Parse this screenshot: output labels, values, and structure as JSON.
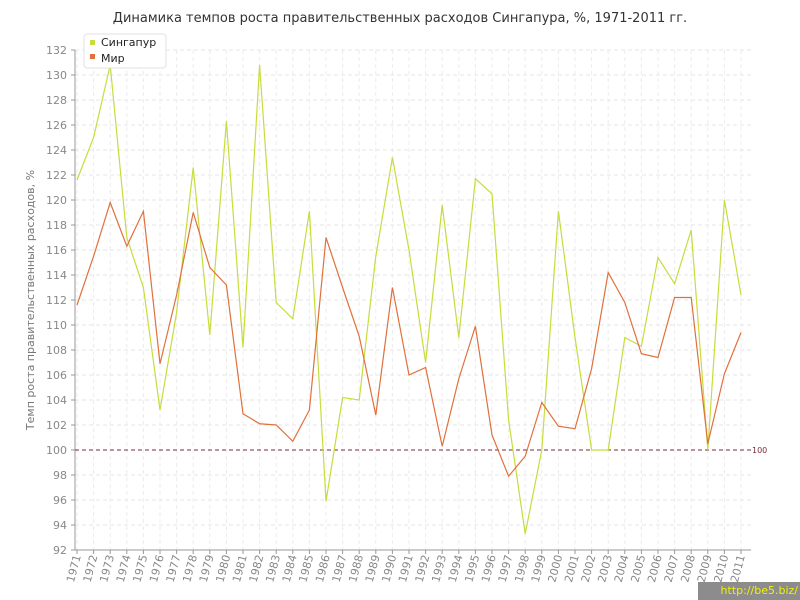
{
  "chart_data": {
    "type": "line",
    "title": "Динамика темпов роста правительственных расходов Сингапура, %, 1971-2011 гг.",
    "xlabel": "",
    "ylabel": "Темп роста правительственных расходов, %",
    "ylim": [
      92,
      132
    ],
    "yticks": [
      92,
      94,
      96,
      98,
      100,
      102,
      104,
      106,
      108,
      110,
      112,
      114,
      116,
      118,
      120,
      122,
      124,
      126,
      128,
      130,
      132
    ],
    "grid": true,
    "legend_position": "top-left",
    "x": [
      "1971",
      "1972",
      "1973",
      "1974",
      "1975",
      "1976",
      "1977",
      "1978",
      "1979",
      "1980",
      "1981",
      "1982",
      "1983",
      "1984",
      "1985",
      "1986",
      "1987",
      "1988",
      "1989",
      "1990",
      "1991",
      "1992",
      "1993",
      "1994",
      "1995",
      "1996",
      "1997",
      "1998",
      "1999",
      "2000",
      "2001",
      "2002",
      "2003",
      "2004",
      "2005",
      "2006",
      "2007",
      "2008",
      "2009",
      "2010",
      "2011"
    ],
    "series": [
      {
        "name": "Сингапур",
        "color": "#c8dc3c",
        "values": [
          121.6,
          125.0,
          130.8,
          117.0,
          113.0,
          103.2,
          111.0,
          122.6,
          109.2,
          126.3,
          108.2,
          130.8,
          111.8,
          110.5,
          119.1,
          95.9,
          104.2,
          104.0,
          115.5,
          123.4,
          116.0,
          107.0,
          119.6,
          109.0,
          121.7,
          120.5,
          102.4,
          93.3,
          100.0,
          119.1,
          109.0,
          100.0,
          100.0,
          109.0,
          108.3,
          115.4,
          113.3,
          117.6,
          100.0,
          120.0,
          112.4
        ]
      },
      {
        "name": "Мир",
        "color": "#e0703c",
        "values": [
          111.6,
          115.5,
          119.8,
          116.3,
          119.1,
          106.9,
          112.4,
          119.0,
          114.6,
          113.2,
          102.9,
          102.1,
          102.0,
          100.7,
          103.2,
          117.0,
          113.0,
          109.1,
          102.8,
          113.0,
          106.0,
          106.6,
          100.3,
          105.7,
          109.9,
          101.2,
          97.9,
          99.5,
          103.8,
          101.9,
          101.7,
          106.5,
          114.2,
          111.8,
          107.7,
          107.4,
          112.2,
          112.2,
          100.5,
          106.1,
          109.4
        ]
      }
    ],
    "reference_line": {
      "value": 100,
      "label": "100",
      "color": "#7a2a3a"
    }
  },
  "watermark": "http://be5.biz/"
}
